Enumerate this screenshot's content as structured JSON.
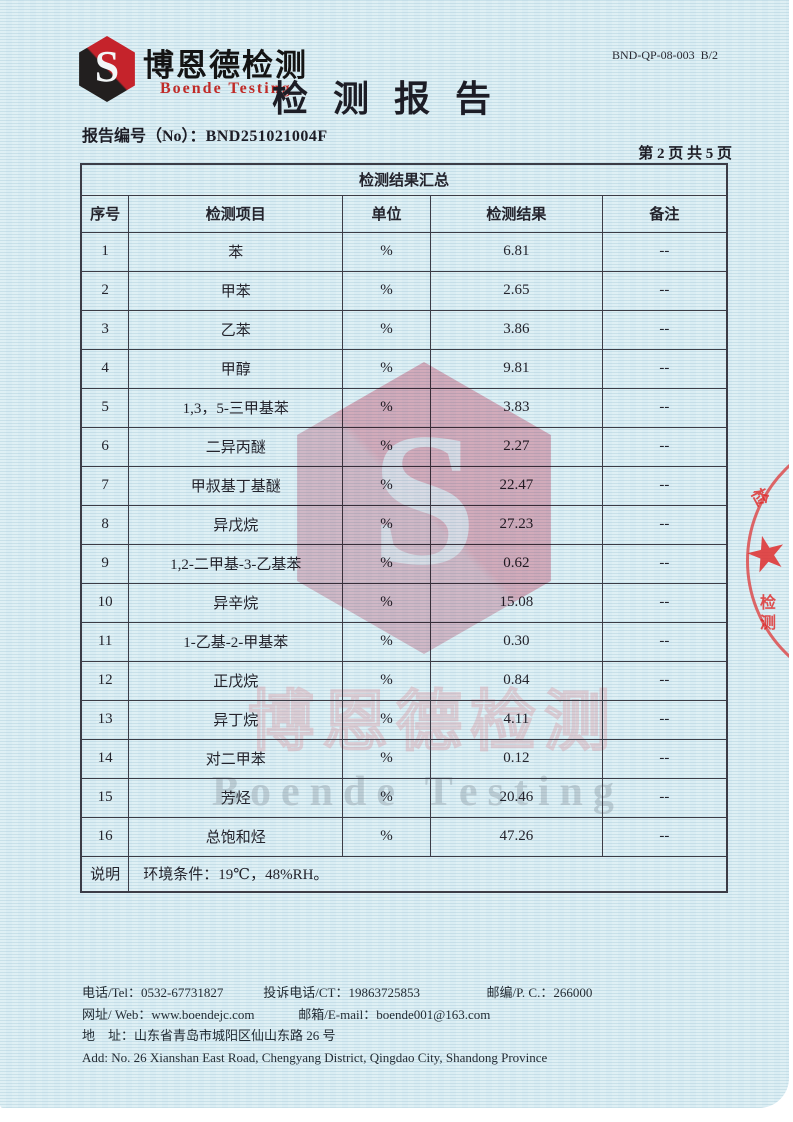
{
  "doc_code": "BND-QP-08-003  B/2",
  "logo": {
    "mark_letter": "S",
    "name_cn": "博恩德检测",
    "name_en": "Boende Testing"
  },
  "title": "检 测 报 告",
  "report_no_label": "报告编号（No）：",
  "report_no_value": "BND251021004F",
  "page_indicator": "第 2 页 共 5 页",
  "colors": {
    "brand_red": "#c5232b",
    "paper_blue": "#dceef4",
    "stamp_red": "#de3030",
    "watermark_pink": "#e78a9e"
  },
  "table": {
    "title": "检测结果汇总",
    "headers": [
      "序号",
      "检测项目",
      "单位",
      "检测结果",
      "备注"
    ],
    "rows": [
      [
        "1",
        "苯",
        "%",
        "6.81",
        "--"
      ],
      [
        "2",
        "甲苯",
        "%",
        "2.65",
        "--"
      ],
      [
        "3",
        "乙苯",
        "%",
        "3.86",
        "--"
      ],
      [
        "4",
        "甲醇",
        "%",
        "9.81",
        "--"
      ],
      [
        "5",
        "1,3，5-三甲基苯",
        "%",
        "3.83",
        "--"
      ],
      [
        "6",
        "二异丙醚",
        "%",
        "2.27",
        "--"
      ],
      [
        "7",
        "甲叔基丁基醚",
        "%",
        "22.47",
        "--"
      ],
      [
        "8",
        "异戊烷",
        "%",
        "27.23",
        "--"
      ],
      [
        "9",
        "1,2-二甲基-3-乙基苯",
        "%",
        "0.62",
        "--"
      ],
      [
        "10",
        "异辛烷",
        "%",
        "15.08",
        "--"
      ],
      [
        "11",
        "1-乙基-2-甲基苯",
        "%",
        "0.30",
        "--"
      ],
      [
        "12",
        "正戊烷",
        "%",
        "0.84",
        "--"
      ],
      [
        "13",
        "异丁烷",
        "%",
        "4.11",
        "--"
      ],
      [
        "14",
        "对二甲苯",
        "%",
        "0.12",
        "--"
      ],
      [
        "15",
        "芳烃",
        "%",
        "20.46",
        "--"
      ],
      [
        "16",
        "总饱和烃",
        "%",
        "47.26",
        "--"
      ]
    ],
    "note_label": "说明",
    "note_text": "环境条件：19℃，48%RH。"
  },
  "watermark": {
    "text_cn": "博恩德检测",
    "text_en": "Boende  Testing"
  },
  "stamp": {
    "star": "★",
    "char_top": "检",
    "char_bottom": "检测"
  },
  "footer": {
    "tel": "电话/Tel：0532-67731827",
    "complaint": "投诉电话/CT：19863725853",
    "postcode": "邮编/P. C.：266000",
    "web": "网址/ Web：www.boendejc.com",
    "email": "邮箱/E-mail：boende001@163.com",
    "address_cn": "地　址：山东省青岛市城阳区仙山东路 26 号",
    "address_en": "Add: No. 26 Xianshan East Road, Chengyang District, Qingdao City, Shandong Province"
  }
}
